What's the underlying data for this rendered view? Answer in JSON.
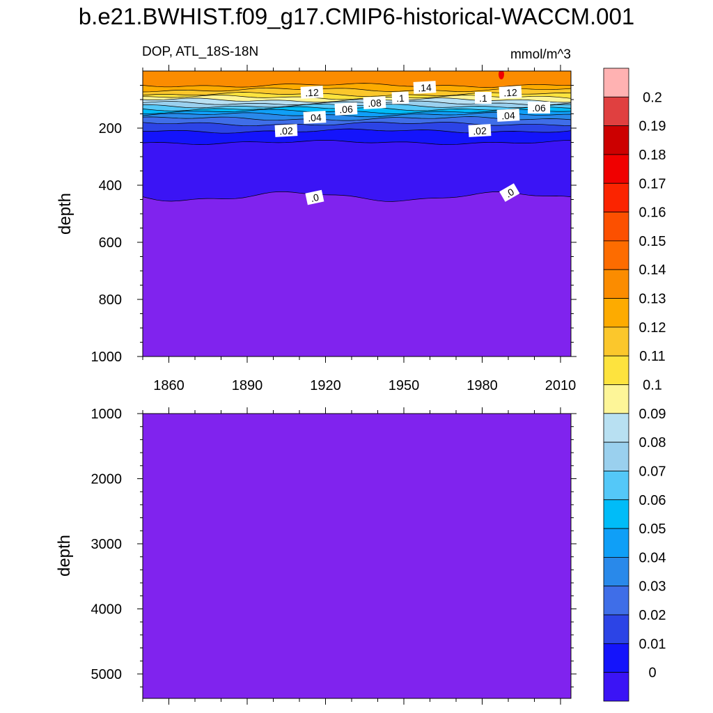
{
  "title": "b.e21.BWHIST.f09_g17.CMIP6-historical-WACCM.001",
  "left_string": "DOP, ATL_18S-18N",
  "right_string": "mmol/m^3",
  "colors": {
    "fill_levels": [
      "#8023ee",
      "#3b14f5",
      "#1414fb",
      "#2c44e6",
      "#3f6ee8",
      "#2989ea",
      "#0f9ff7",
      "#00bcf8",
      "#54c8f8",
      "#9ad0ee",
      "#b8e0f2",
      "#fdf598",
      "#fde33e",
      "#fbc72c",
      "#fdab00",
      "#fb8c00",
      "#fd6c00",
      "#fc5000",
      "#fb2400",
      "#f00000",
      "#cc0000",
      "#e04040",
      "#ffb2b2"
    ]
  },
  "chart_data": [
    {
      "type": "heatmap",
      "subtype": "filled-contour depth-time section",
      "x": {
        "ticks": [
          1860,
          1890,
          1920,
          1950,
          1980,
          2010
        ],
        "range": [
          1850,
          2014
        ]
      },
      "y": {
        "label": "depth",
        "ticks": [
          200,
          400,
          600,
          800,
          1000
        ],
        "range": [
          0,
          1000
        ],
        "reversed": true
      },
      "contour_labels": [
        ".12",
        ".06",
        ".08",
        ".1",
        ".14",
        ".1",
        ".12",
        ".04",
        ".06",
        ".04",
        ".02",
        ".02",
        ".0",
        ".0"
      ],
      "levels": [
        {
          "value": 0.14,
          "depth": 50
        },
        {
          "value": 0.13,
          "depth": 66
        },
        {
          "value": 0.12,
          "depth": 82
        },
        {
          "value": 0.11,
          "depth": 92
        },
        {
          "value": 0.1,
          "depth": 102
        },
        {
          "value": 0.09,
          "depth": 112
        },
        {
          "value": 0.08,
          "depth": 122
        },
        {
          "value": 0.07,
          "depth": 132
        },
        {
          "value": 0.06,
          "depth": 142
        },
        {
          "value": 0.05,
          "depth": 153
        },
        {
          "value": 0.04,
          "depth": 167
        },
        {
          "value": 0.03,
          "depth": 185
        },
        {
          "value": 0.02,
          "depth": 210
        },
        {
          "value": 0.01,
          "depth": 250
        },
        {
          "value": 0.0,
          "depth": 440
        }
      ]
    },
    {
      "type": "heatmap",
      "subtype": "filled-contour depth-time section",
      "y": {
        "label": "depth",
        "ticks": [
          1000,
          2000,
          3000,
          4000,
          5000
        ],
        "range": [
          1000,
          5375
        ],
        "reversed": true
      },
      "fill_value": 0.0
    },
    {
      "type": "colorbar",
      "labels": [
        "0.2",
        "0.19",
        "0.18",
        "0.17",
        "0.16",
        "0.15",
        "0.14",
        "0.13",
        "0.12",
        "0.11",
        "0.1",
        "0.09",
        "0.08",
        "0.07",
        "0.06",
        "0.05",
        "0.04",
        "0.03",
        "0.02",
        "0.01",
        "0"
      ]
    }
  ]
}
